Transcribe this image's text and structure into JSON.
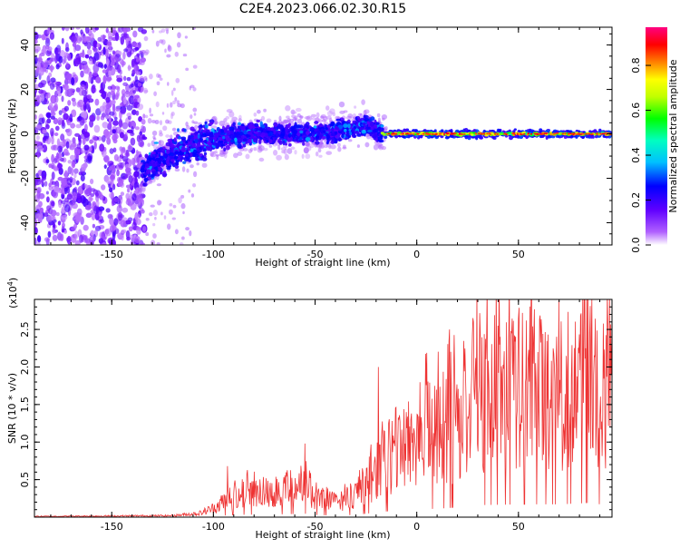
{
  "title": "C2E4.2023.066.02.30.R15",
  "chart_data": [
    {
      "type": "heatmap",
      "xlabel": "Height of straight line (km)",
      "ylabel": "Frequency (Hz)",
      "xlim": [
        -188,
        96
      ],
      "ylim": [
        -50,
        48
      ],
      "xticks": [
        -150,
        -100,
        -50,
        0,
        50
      ],
      "xtick_labels": [
        "-150",
        "-100",
        "-50",
        "0",
        "50"
      ],
      "yticks": [
        -40,
        -20,
        0,
        20,
        40
      ],
      "ytick_labels": [
        "-40",
        "-20",
        "0",
        "20",
        "40"
      ],
      "colorbar": {
        "label": "Normalized spectral amplitude",
        "range": [
          0,
          0.97
        ],
        "ticks": [
          0.0,
          0.2,
          0.4,
          0.6,
          0.8
        ],
        "tick_labels": [
          "0.0",
          "0.2",
          "0.4",
          "0.6",
          "0.8"
        ],
        "colors": [
          "#ffffff",
          "#8a00ff",
          "#0000ff",
          "#00ffff",
          "#00ff00",
          "#ffff00",
          "#ff8000",
          "#ff0000",
          "#ff0080"
        ]
      },
      "regions": [
        {
          "x_range": [
            -188,
            -135
          ],
          "freq_spread": [
            -50,
            48
          ],
          "amplitude": 0.1,
          "description_free": true
        },
        {
          "x_range": [
            -135,
            -100
          ],
          "freq_center": -8,
          "amplitude": 0.2
        },
        {
          "x_range": [
            -100,
            -17
          ],
          "freq_center": 0,
          "amplitude": 0.3
        },
        {
          "x_range": [
            -17,
            96
          ],
          "freq_center": 0,
          "amplitude": 0.9
        }
      ],
      "ridge_freq": [
        {
          "x": -130,
          "y": -14
        },
        {
          "x": -120,
          "y": -9
        },
        {
          "x": -110,
          "y": -5
        },
        {
          "x": -100,
          "y": -2
        },
        {
          "x": -80,
          "y": 0
        },
        {
          "x": -60,
          "y": 0
        },
        {
          "x": -40,
          "y": 1
        },
        {
          "x": -25,
          "y": 4
        },
        {
          "x": -17,
          "y": 0
        },
        {
          "x": 0,
          "y": 0
        },
        {
          "x": 50,
          "y": 0
        },
        {
          "x": 96,
          "y": 0
        }
      ]
    },
    {
      "type": "line",
      "xlabel": "Height of straight line (km)",
      "ylabel": "SNR (10 * v/v)",
      "multiplier": "(x10",
      "multiplier_exp": "4",
      "multiplier_close": ")",
      "xlim": [
        -188,
        96
      ],
      "ylim": [
        0,
        2.9
      ],
      "xticks": [
        -150,
        -100,
        -50,
        0,
        50
      ],
      "xtick_labels": [
        "-150",
        "-100",
        "-50",
        "0",
        "50"
      ],
      "yticks": [
        0.5,
        1.0,
        1.5,
        2.0,
        2.5
      ],
      "ytick_labels": [
        "0.5",
        "1.0",
        "1.5",
        "2.0",
        "2.5"
      ],
      "series_color": "#ee3333",
      "envelope": [
        {
          "x": -188,
          "y": 0.01
        },
        {
          "x": -120,
          "y": 0.02
        },
        {
          "x": -107,
          "y": 0.05
        },
        {
          "x": -100,
          "y": 0.12
        },
        {
          "x": -90,
          "y": 0.3
        },
        {
          "x": -70,
          "y": 0.35
        },
        {
          "x": -55,
          "y": 0.45
        },
        {
          "x": -50,
          "y": 0.3
        },
        {
          "x": -40,
          "y": 0.2
        },
        {
          "x": -30,
          "y": 0.3
        },
        {
          "x": -20,
          "y": 0.6
        },
        {
          "x": -10,
          "y": 0.9
        },
        {
          "x": 0,
          "y": 1.1
        },
        {
          "x": 10,
          "y": 1.1
        },
        {
          "x": 20,
          "y": 1.3
        },
        {
          "x": 30,
          "y": 1.6
        },
        {
          "x": 50,
          "y": 1.7
        },
        {
          "x": 70,
          "y": 1.7
        },
        {
          "x": 85,
          "y": 1.9
        },
        {
          "x": 96,
          "y": 1.5
        }
      ],
      "peaks": [
        {
          "x": 86,
          "y": 2.9
        },
        {
          "x": 52,
          "y": 2.72
        },
        {
          "x": 28,
          "y": 2.6
        },
        {
          "x": 40,
          "y": 2.55
        },
        {
          "x": 16,
          "y": 2.5
        },
        {
          "x": -19,
          "y": 2.0
        },
        {
          "x": -55,
          "y": 0.98
        },
        {
          "x": -93,
          "y": 0.68
        }
      ]
    }
  ]
}
